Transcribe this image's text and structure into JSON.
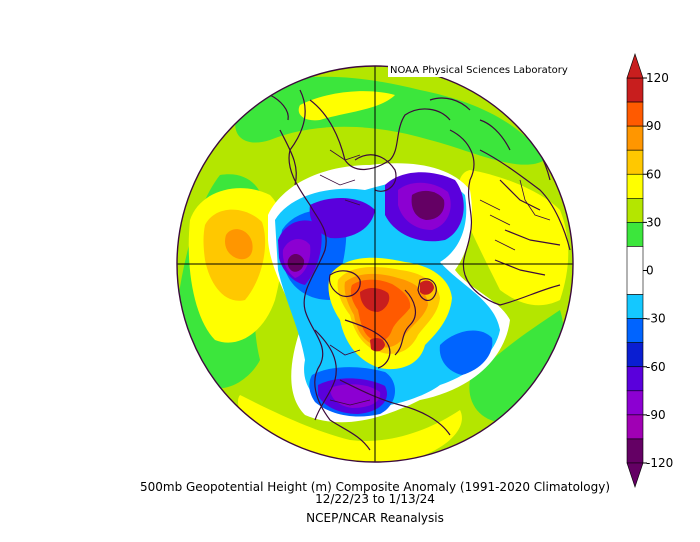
{
  "credit": "NOAA Physical Sciences Laboratory",
  "caption": {
    "line1": "500mb Geopotential Height (m) Composite Anomaly (1991-2020 Climatology)",
    "line2": "12/22/23  to 1/13/24",
    "line3": "NCEP/NCAR Reanalysis"
  },
  "colorbar": {
    "tick_labels": [
      "120",
      "90",
      "60",
      "30",
      "0",
      "-30",
      "-60",
      "-90",
      "-120"
    ],
    "bands": [
      {
        "from": 105,
        "to": 120,
        "color": "#c81e1e"
      },
      {
        "from": 90,
        "to": 105,
        "color": "#ff5a00"
      },
      {
        "from": 75,
        "to": 90,
        "color": "#ff9600"
      },
      {
        "from": 60,
        "to": 75,
        "color": "#ffc800"
      },
      {
        "from": 45,
        "to": 60,
        "color": "#ffff00"
      },
      {
        "from": 30,
        "to": 45,
        "color": "#b4e600"
      },
      {
        "from": 15,
        "to": 30,
        "color": "#3ce63c"
      },
      {
        "from": -15,
        "to": 15,
        "color": "#ffffff"
      },
      {
        "from": -30,
        "to": -15,
        "color": "#14c8ff"
      },
      {
        "from": -45,
        "to": -30,
        "color": "#0064ff"
      },
      {
        "from": -60,
        "to": -45,
        "color": "#0a1ed2"
      },
      {
        "from": -75,
        "to": -60,
        "color": "#5a00dc"
      },
      {
        "from": -90,
        "to": -75,
        "color": "#8c00d2"
      },
      {
        "from": -105,
        "to": -90,
        "color": "#a000b4"
      },
      {
        "from": -120,
        "to": -105,
        "color": "#640064"
      }
    ],
    "arrow_top_color": "#c81e1e",
    "arrow_bottom_color": "#640064",
    "range": [
      -120,
      120
    ]
  },
  "colors": {
    "coastline": "#3c0a3c",
    "meridian": "#000000"
  }
}
